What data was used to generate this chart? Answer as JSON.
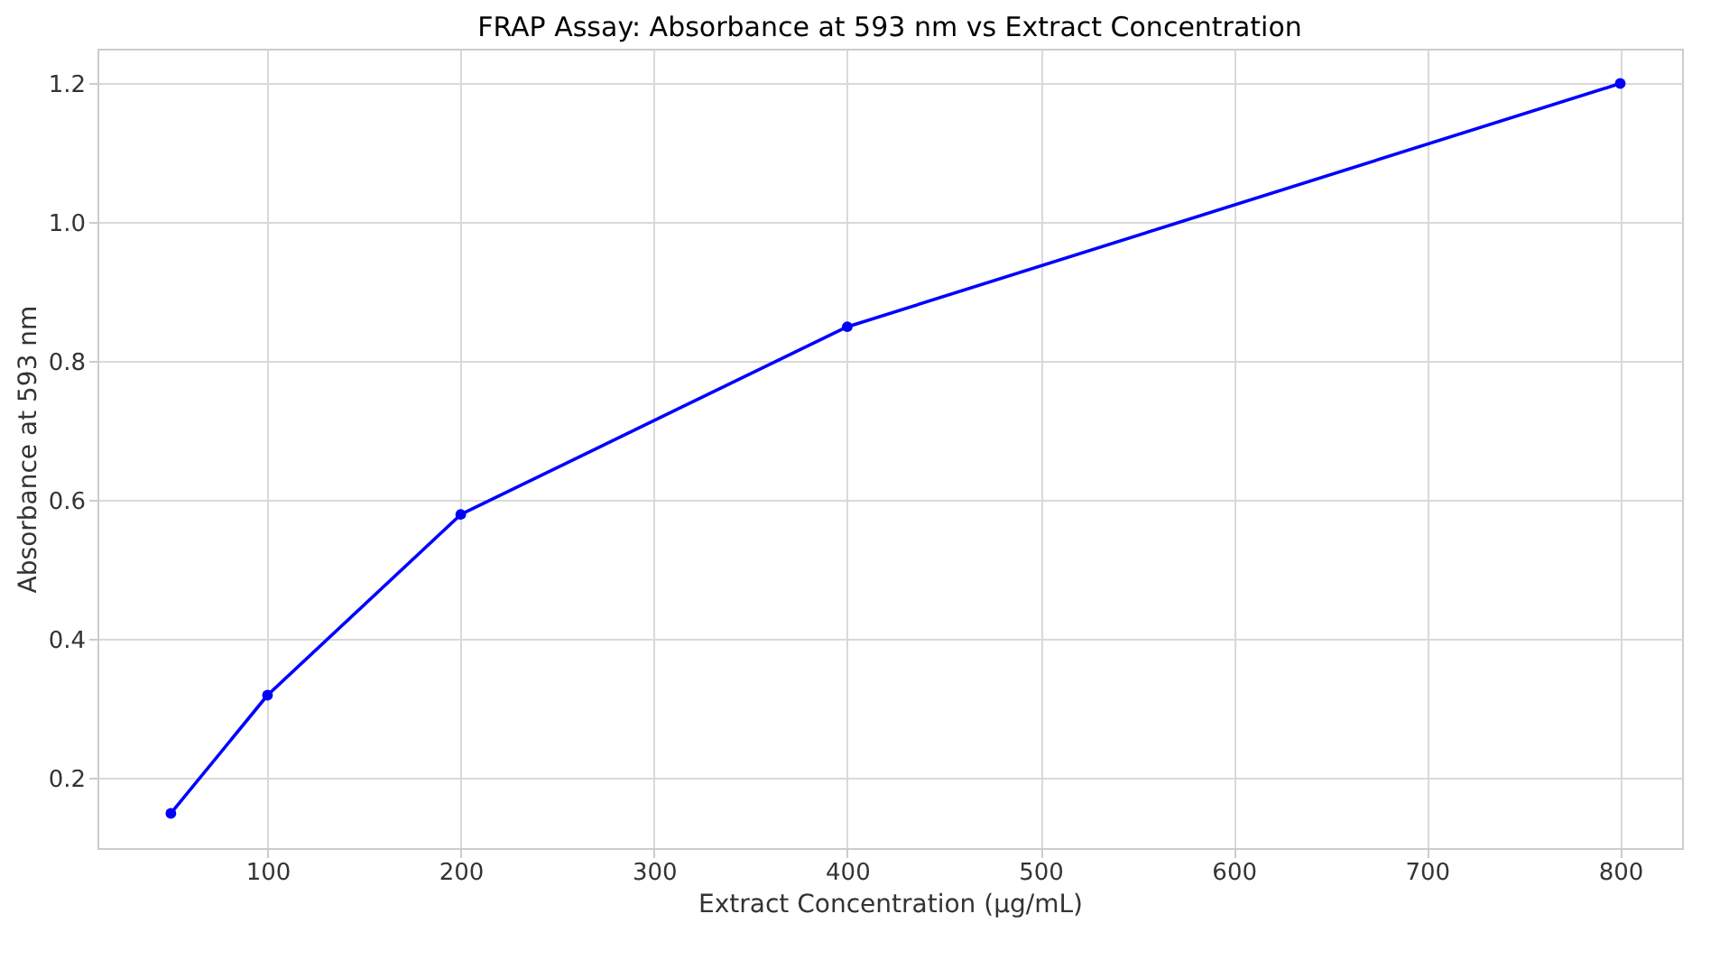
{
  "chart_data": {
    "type": "line",
    "title": "FRAP Assay: Absorbance at 593 nm vs Extract Concentration",
    "xlabel": "Extract Concentration (µg/mL)",
    "ylabel": "Absorbance at 593 nm",
    "x": [
      50,
      100,
      200,
      400,
      800
    ],
    "series": [
      {
        "color": "#0000ff",
        "values": [
          0.15,
          0.32,
          0.58,
          0.85,
          1.2
        ]
      }
    ],
    "xlim": [
      12,
      832
    ],
    "xticks": [
      100,
      200,
      300,
      400,
      500,
      600,
      700,
      800
    ],
    "ylim": [
      0.1,
      1.25
    ],
    "yticks": [
      0.2,
      0.4,
      0.6,
      0.8,
      {
        "value": 1,
        "label": "1.0"
      },
      1.2
    ],
    "grid": true,
    "marker": "circle",
    "line_style": "solid"
  }
}
